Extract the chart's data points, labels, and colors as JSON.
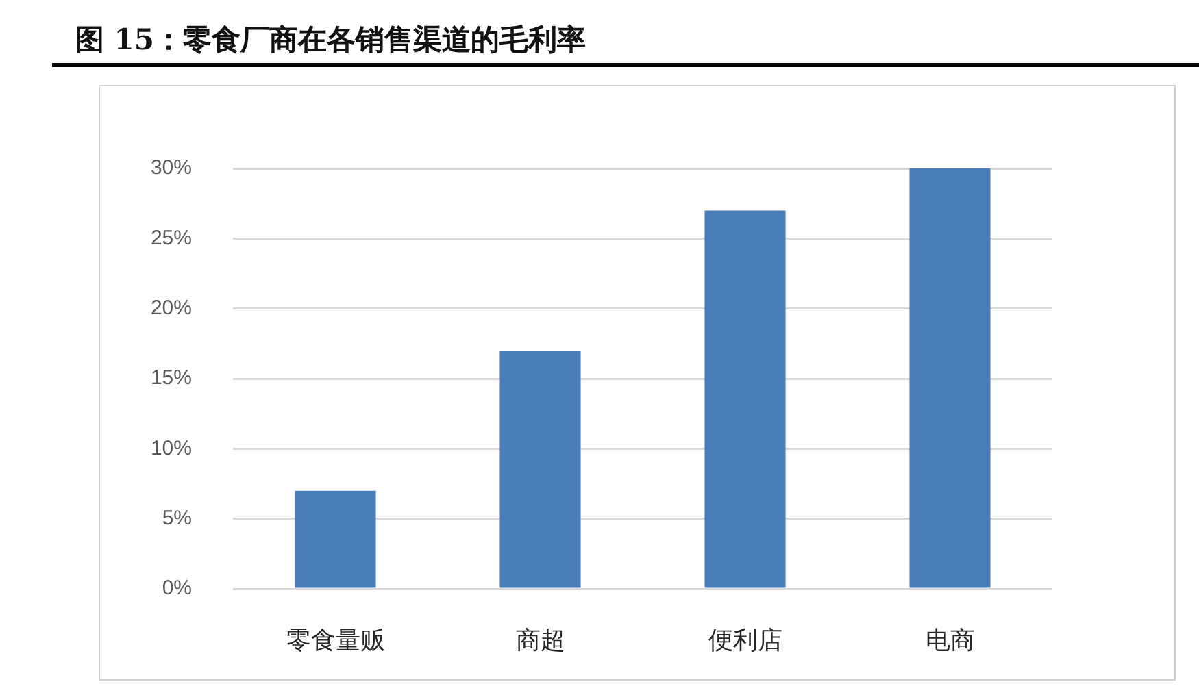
{
  "chart_data": {
    "type": "bar",
    "title": "图 15：零食厂商在各销售渠道的毛利率",
    "categories": [
      "零食量贩",
      "商超",
      "便利店",
      "电商"
    ],
    "values": [
      7,
      17,
      27,
      30
    ],
    "color": "#4a7ebb",
    "ylim": [
      0,
      30
    ],
    "yticks": [
      {
        "value": 0,
        "label": "0%"
      },
      {
        "value": 5,
        "label": "5%"
      },
      {
        "value": 10,
        "label": "10%"
      },
      {
        "value": 15,
        "label": "15%"
      },
      {
        "value": 20,
        "label": "20%"
      },
      {
        "value": 25,
        "label": "25%"
      },
      {
        "value": 30,
        "label": "30%"
      }
    ],
    "grid": "y"
  }
}
